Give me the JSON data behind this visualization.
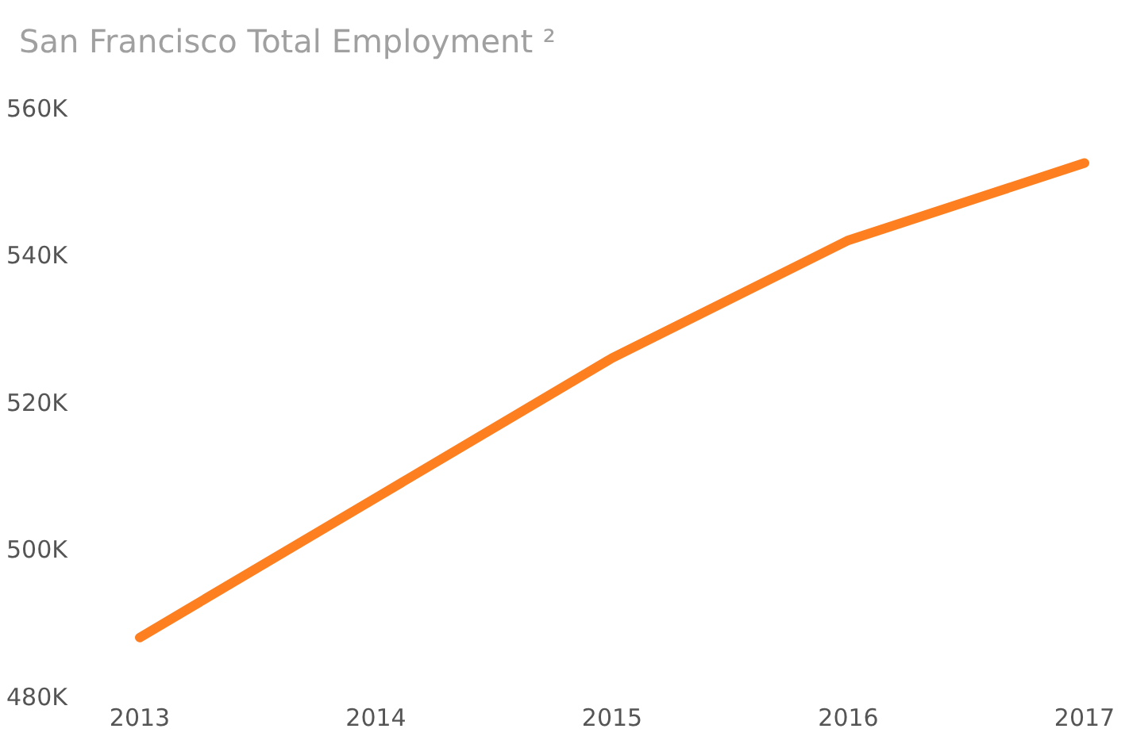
{
  "chart_data": {
    "type": "line",
    "title": "San Francisco Total Employment ²",
    "categories": [
      "2013",
      "2014",
      "2015",
      "2016",
      "2017"
    ],
    "series": [
      {
        "color": "#fd7f1f",
        "values": [
          488,
          507,
          526,
          542,
          552.5
        ]
      }
    ],
    "ylim": [
      480,
      560
    ],
    "yticks": [
      {
        "value": 480,
        "label": "480K"
      },
      {
        "value": 500,
        "label": "500K"
      },
      {
        "value": 520,
        "label": "520K"
      },
      {
        "value": 540,
        "label": "540K"
      },
      {
        "value": 560,
        "label": "560K"
      }
    ],
    "grid": false,
    "legend": false,
    "marker": "none",
    "line_style": "solid"
  }
}
